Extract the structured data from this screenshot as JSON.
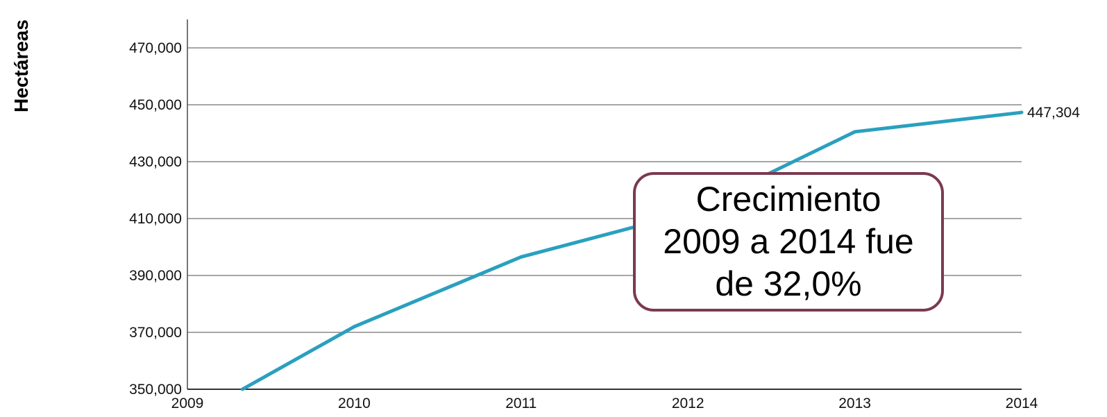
{
  "chart_data": {
    "type": "line",
    "title": "",
    "xlabel": "",
    "ylabel": "Hectáreas",
    "x": [
      2009,
      2010,
      2011,
      2012,
      2013,
      2014
    ],
    "x_tick_labels": [
      "2009",
      "2010",
      "2011",
      "2012",
      "2013",
      "2014"
    ],
    "xlim": [
      2009,
      2014
    ],
    "ylim": [
      350000,
      480000
    ],
    "y_ticks": [
      350000,
      370000,
      390000,
      410000,
      430000,
      450000,
      470000
    ],
    "y_tick_labels": [
      "350,000",
      "370,000",
      "390,000",
      "410,000",
      "430,000",
      "450,000",
      "470,000"
    ],
    "series": [
      {
        "name": "",
        "color": "#2aa0bf",
        "points": [
          {
            "x": 2009.33,
            "y": 350000
          },
          {
            "x": 2010,
            "y": 372000
          },
          {
            "x": 2011,
            "y": 396500
          },
          {
            "x": 2012,
            "y": 412000
          },
          {
            "x": 2013,
            "y": 440500
          },
          {
            "x": 2014,
            "y": 447304
          }
        ]
      }
    ],
    "end_label": "447,304",
    "grid": {
      "horizontal": true,
      "vertical": false,
      "color": "#888888"
    },
    "annotation": {
      "lines": [
        "Crecimiento",
        "2009 a 2014 fue",
        "de 32,0%"
      ],
      "border_color": "#7b3a4e",
      "placement": "center-right"
    }
  }
}
